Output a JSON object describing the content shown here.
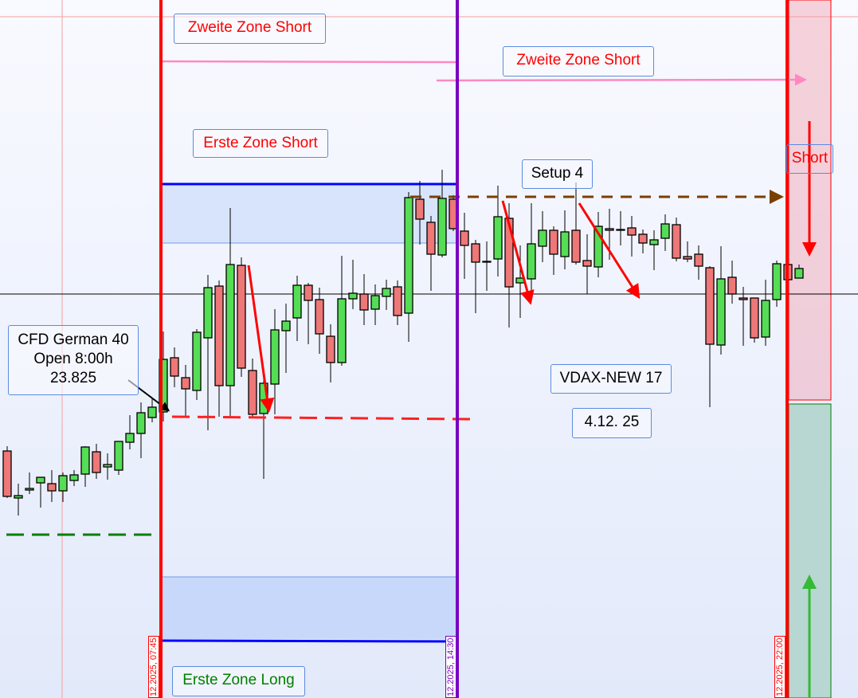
{
  "chart_data": {
    "type": "candlestick",
    "instrument": "CFD German 40",
    "colors": {
      "up": "#55dd55",
      "down": "#ee7777",
      "short_zone": "#ff0000",
      "long_zone": "#008000",
      "session_line": "#7a00c0",
      "zone_fill": "#d8e4fc"
    },
    "annotations": {
      "zweite_zone_short_1": "Zweite Zone Short",
      "zweite_zone_short_2": "Zweite Zone Short",
      "erste_zone_short": "Erste Zone Short",
      "erste_zone_long": "Erste Zone Long",
      "setup": "Setup 4",
      "short": "Short",
      "open_info": [
        "CFD German 40",
        "Open 8:00h",
        "23.825"
      ],
      "vdax": "VDAX-NEW 17",
      "date": "4.12. 25"
    },
    "time_markers": [
      {
        "label": "12.2025, 07:45",
        "color": "#ff0000"
      },
      {
        "label": "12.2025, 14:30",
        "color": "#7a00c0"
      },
      {
        "label": "12.2025, 22:00",
        "color": "#ff0000"
      }
    ],
    "open_level": 23825,
    "candles": [
      [
        23782,
        23788,
        23723,
        23725
      ],
      [
        23723,
        23741,
        23701,
        23726
      ],
      [
        23733,
        23755,
        23728,
        23735
      ],
      [
        23742,
        23749,
        23711,
        23749
      ],
      [
        23741,
        23758,
        23718,
        23732
      ],
      [
        23732,
        23755,
        23718,
        23751
      ],
      [
        23745,
        23758,
        23738,
        23752
      ],
      [
        23753,
        23788,
        23737,
        23787
      ],
      [
        23781,
        23791,
        23747,
        23755
      ],
      [
        23762,
        23779,
        23746,
        23765
      ],
      [
        23758,
        23794,
        23752,
        23794
      ],
      [
        23793,
        23827,
        23784,
        23804
      ],
      [
        23804,
        23843,
        23773,
        23830
      ],
      [
        23824,
        23848,
        23818,
        23837
      ],
      [
        23831,
        23932,
        23819,
        23897
      ],
      [
        23899,
        23912,
        23862,
        23876
      ],
      [
        23874,
        23890,
        23826,
        23860
      ],
      [
        23858,
        23935,
        23846,
        23931
      ],
      [
        23924,
        24003,
        23808,
        23987
      ],
      [
        23989,
        23996,
        23825,
        23864
      ],
      [
        23864,
        24087,
        23825,
        24016
      ],
      [
        24015,
        24025,
        23875,
        23886
      ],
      [
        23883,
        23898,
        23823,
        23828
      ],
      [
        23829,
        23881,
        23747,
        23867
      ],
      [
        23866,
        23960,
        23828,
        23934
      ],
      [
        23933,
        23967,
        23880,
        23945
      ],
      [
        23949,
        24002,
        23920,
        23990
      ],
      [
        23990,
        23993,
        23916,
        23971
      ],
      [
        23972,
        23987,
        23904,
        23929
      ],
      [
        23926,
        23941,
        23868,
        23893
      ],
      [
        23893,
        24027,
        23889,
        23973
      ],
      [
        23973,
        24022,
        23960,
        23980
      ],
      [
        23979,
        24004,
        23940,
        23959
      ],
      [
        23960,
        23991,
        23940,
        23977
      ],
      [
        23976,
        23997,
        23959,
        23986
      ],
      [
        23988,
        23996,
        23940,
        23952
      ],
      [
        23955,
        24107,
        23919,
        24100
      ],
      [
        24098,
        24121,
        24041,
        24073
      ],
      [
        24069,
        24077,
        23983,
        24029
      ],
      [
        24028,
        24135,
        24025,
        24099
      ],
      [
        24098,
        24103,
        24058,
        24061
      ],
      [
        24058,
        24081,
        23998,
        24040
      ],
      [
        24042,
        24047,
        23955,
        24019
      ],
      [
        24020,
        24045,
        23983,
        24020
      ],
      [
        24023,
        24115,
        24001,
        24076
      ],
      [
        24074,
        24093,
        23937,
        23988
      ],
      [
        23993,
        24040,
        23949,
        23999
      ],
      [
        23998,
        24093,
        23977,
        24042
      ],
      [
        24039,
        24083,
        24019,
        24059
      ],
      [
        24059,
        24064,
        24003,
        24029
      ],
      [
        24026,
        24084,
        24010,
        24057
      ],
      [
        24059,
        24119,
        24016,
        24019
      ],
      [
        24021,
        24054,
        23979,
        24014
      ],
      [
        24013,
        24082,
        24000,
        24064
      ],
      [
        24061,
        24086,
        24022,
        24059
      ],
      [
        24060,
        24083,
        24040,
        24060
      ],
      [
        24062,
        24077,
        24026,
        24053
      ],
      [
        24054,
        24060,
        24030,
        24043
      ],
      [
        24041,
        24059,
        24009,
        24047
      ],
      [
        24049,
        24079,
        24033,
        24067
      ],
      [
        24066,
        24075,
        24020,
        24024
      ],
      [
        24026,
        24045,
        24019,
        24023
      ],
      [
        24029,
        24040,
        23997,
        24014
      ],
      [
        24012,
        24014,
        23837,
        23916
      ],
      [
        23915,
        24039,
        23903,
        23998
      ],
      [
        24000,
        24021,
        23967,
        23979
      ],
      [
        23974,
        23988,
        23914,
        23972
      ],
      [
        23974,
        23974,
        23918,
        23924
      ],
      [
        23925,
        23997,
        23914,
        23971
      ],
      [
        23972,
        24021,
        23963,
        24017
      ],
      [
        24016,
        24018,
        23997,
        23997
      ],
      [
        23999,
        24016,
        23999,
        24011
      ]
    ]
  }
}
